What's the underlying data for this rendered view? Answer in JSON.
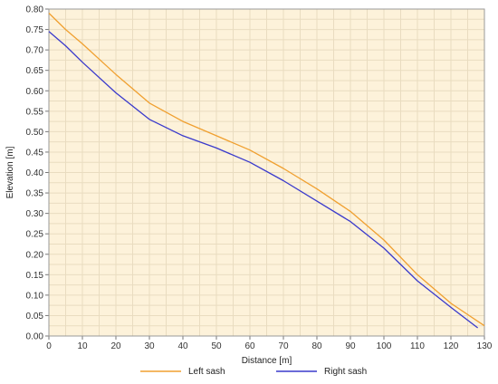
{
  "chart_data": {
    "type": "line",
    "xlabel": "Distance [m]",
    "ylabel": "Elevation [m]",
    "xlim": [
      0,
      130
    ],
    "ylim": [
      0,
      0.8
    ],
    "xticks": [
      "0",
      "10",
      "20",
      "30",
      "40",
      "50",
      "60",
      "70",
      "80",
      "90",
      "100",
      "110",
      "120",
      "130"
    ],
    "yticks": [
      "0.00",
      "0.05",
      "0.10",
      "0.15",
      "0.20",
      "0.25",
      "0.30",
      "0.35",
      "0.40",
      "0.45",
      "0.50",
      "0.55",
      "0.60",
      "0.65",
      "0.70",
      "0.75",
      "0.80"
    ],
    "grid": true,
    "legend": "bottom",
    "background_color": "#fdf2da",
    "grid_color": "#e9dcc0",
    "series": [
      {
        "name": "Left sash",
        "color": "#f0a030",
        "x": [
          0,
          5,
          10,
          20,
          30,
          40,
          50,
          60,
          70,
          80,
          90,
          100,
          110,
          120,
          130
        ],
        "y": [
          0.79,
          0.75,
          0.715,
          0.64,
          0.57,
          0.525,
          0.49,
          0.455,
          0.41,
          0.36,
          0.305,
          0.235,
          0.15,
          0.08,
          0.025
        ]
      },
      {
        "name": "Right sash",
        "color": "#3a3acc",
        "x": [
          0,
          5,
          10,
          20,
          30,
          40,
          50,
          60,
          70,
          80,
          90,
          100,
          110,
          120,
          128
        ],
        "y": [
          0.745,
          0.71,
          0.67,
          0.595,
          0.53,
          0.49,
          0.46,
          0.425,
          0.38,
          0.33,
          0.28,
          0.215,
          0.135,
          0.07,
          0.02
        ]
      }
    ]
  }
}
